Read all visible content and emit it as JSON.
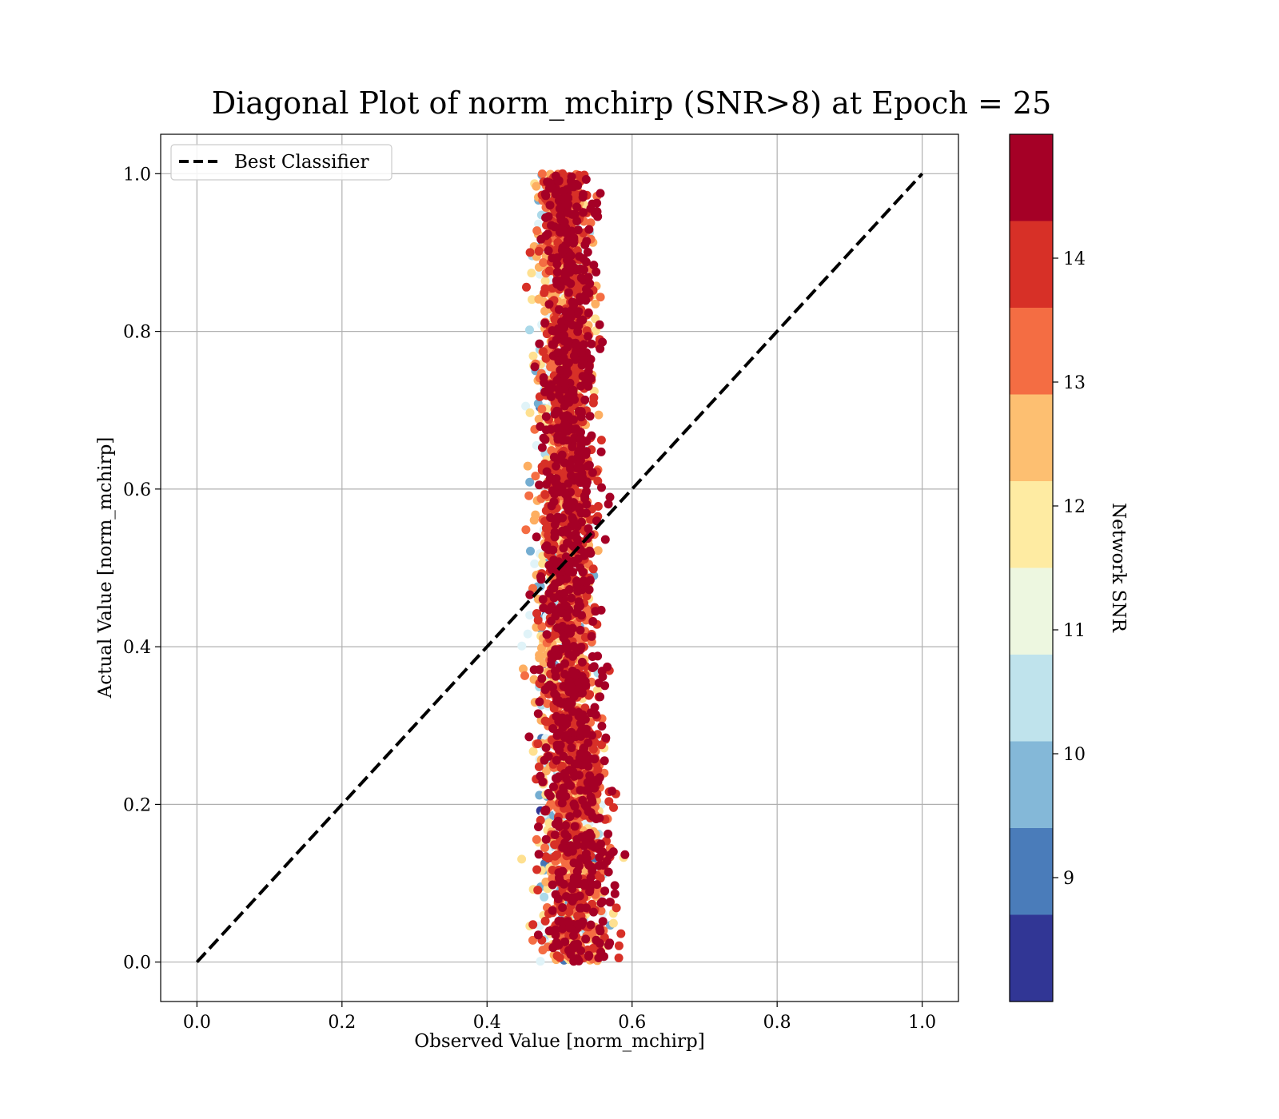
{
  "chart_data": {
    "type": "scatter",
    "title": "Diagonal Plot of norm_mchirp (SNR>8) at Epoch = 25",
    "xlabel": "Observed Value [norm_mchirp]",
    "ylabel": "Actual Value [norm_mchirp]",
    "xlim": [
      -0.05,
      1.05
    ],
    "ylim": [
      -0.05,
      1.05
    ],
    "x_ticks": [
      "0.0",
      "0.2",
      "0.4",
      "0.6",
      "0.8",
      "1.0"
    ],
    "y_ticks": [
      "0.0",
      "0.2",
      "0.4",
      "0.6",
      "0.8",
      "1.0"
    ],
    "grid": true,
    "legend": {
      "placement": "upper-left",
      "entries": [
        "Best Classifier"
      ]
    },
    "reference_line": {
      "name": "Best Classifier",
      "style": "dashed",
      "color": "#000000",
      "points": [
        [
          0,
          0
        ],
        [
          1,
          1
        ]
      ]
    },
    "scatter_cloud": {
      "description_values": {
        "x_center_at_y": [
          [
            0.0,
            0.525
          ],
          [
            0.1,
            0.53
          ],
          [
            0.2,
            0.525
          ],
          [
            0.3,
            0.52
          ],
          [
            0.4,
            0.515
          ],
          [
            0.5,
            0.515
          ],
          [
            0.6,
            0.515
          ],
          [
            0.7,
            0.515
          ],
          [
            0.8,
            0.515
          ],
          [
            0.9,
            0.515
          ],
          [
            1.0,
            0.51
          ]
        ],
        "x_spread": 0.035,
        "y_range": [
          0.0,
          1.0
        ]
      },
      "color_by": "Network SNR"
    },
    "colorbar": {
      "label": "Network SNR",
      "range": [
        8,
        15
      ],
      "ticks": [
        "9",
        "10",
        "11",
        "12",
        "13",
        "14"
      ],
      "tick_values": [
        9,
        10,
        11,
        12,
        13,
        14
      ],
      "colors": [
        "#313695",
        "#4575b4",
        "#74add1",
        "#abd9e9",
        "#e0f3f8",
        "#fee090",
        "#fdae61",
        "#f46d43",
        "#d73027",
        "#a50026"
      ],
      "colors_from_top": [
        "#a50026",
        "#d73027",
        "#f46d43",
        "#fdbf71",
        "#feeba2",
        "#edf7e0",
        "#bfe3ec",
        "#84b8d8",
        "#4a7cba",
        "#313695"
      ]
    }
  }
}
